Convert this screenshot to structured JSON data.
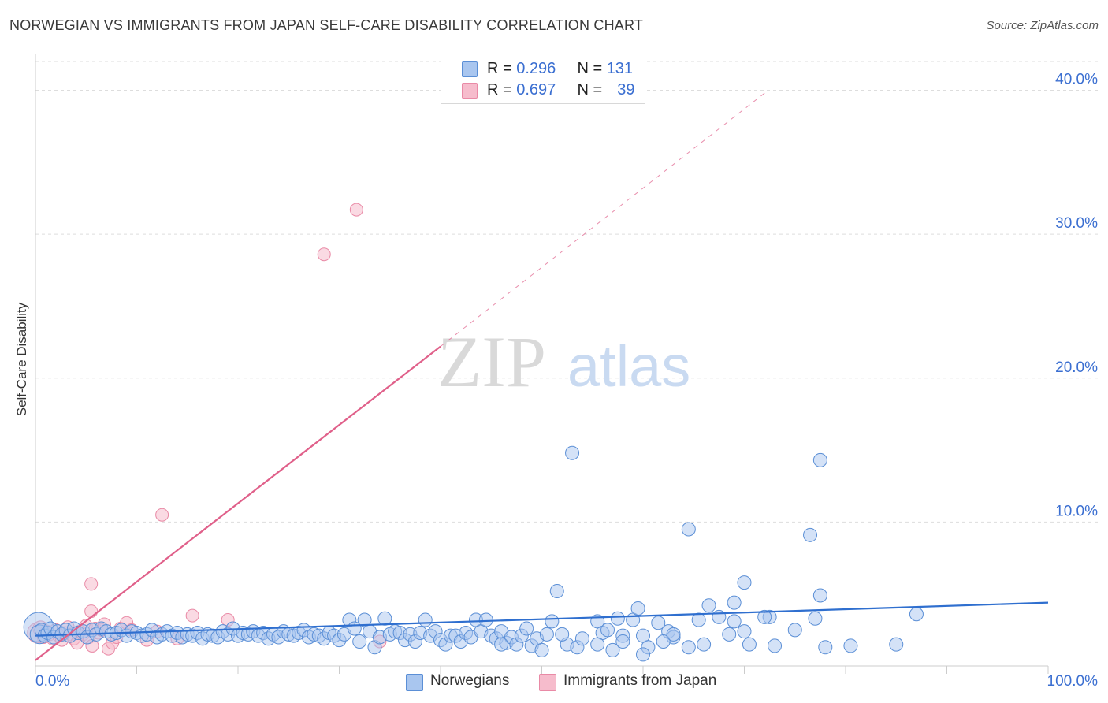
{
  "title": "NORWEGIAN VS IMMIGRANTS FROM JAPAN SELF-CARE DISABILITY CORRELATION CHART",
  "source": "Source: ZipAtlas.com",
  "watermark": {
    "zip": "ZIP",
    "atlas": "atlas"
  },
  "legend": {
    "rows": [
      {
        "r_label": "R =",
        "r_value": "0.296",
        "n_label": "N =",
        "n_value": "131"
      },
      {
        "r_label": "R =",
        "r_value": "0.697",
        "n_label": "N =",
        "n_value": "39"
      }
    ]
  },
  "bottom_legend": {
    "series1": "Norwegians",
    "series2": "Immigrants from Japan"
  },
  "colors": {
    "blue_fill": "#a9c6ef",
    "blue_stroke": "#5b8fd6",
    "blue_line": "#2f6fcf",
    "pink_fill": "#f6bccc",
    "pink_stroke": "#e98aa6",
    "pink_line": "#e0608a",
    "axis_text": "#3b6fd1",
    "grid": "#dddddd"
  },
  "chart_data": {
    "type": "scatter",
    "title": "NORWEGIAN VS IMMIGRANTS FROM JAPAN SELF-CARE DISABILITY CORRELATION CHART",
    "xlabel": "",
    "ylabel": "Self-Care Disability",
    "xlim": [
      0,
      100
    ],
    "ylim": [
      0,
      42
    ],
    "x_tick_labels": [
      "0.0%",
      "100.0%"
    ],
    "y_ticks": [
      10,
      20,
      30,
      40
    ],
    "y_tick_labels": [
      "10.0%",
      "20.0%",
      "30.0%",
      "40.0%"
    ],
    "grid": true,
    "series": [
      {
        "name": "Norwegians",
        "r": 0.296,
        "n": 131,
        "trend": {
          "x": [
            0,
            100
          ],
          "y": [
            2.1,
            4.4
          ],
          "dashed_beyond": null
        },
        "points": [
          [
            0.3,
            2.7,
            22
          ],
          [
            0.4,
            2.2,
            14
          ],
          [
            0.6,
            2.5,
            10
          ],
          [
            0.9,
            2.1,
            10
          ],
          [
            1.2,
            2.3,
            10
          ],
          [
            1.5,
            2.6,
            10
          ],
          [
            1.8,
            2.0,
            10
          ],
          [
            2.2,
            2.4,
            10
          ],
          [
            2.6,
            2.2,
            10
          ],
          [
            3.0,
            2.5,
            10
          ],
          [
            3.4,
            2.1,
            10
          ],
          [
            3.8,
            2.6,
            10
          ],
          [
            4.2,
            2.3,
            10
          ],
          [
            4.7,
            2.4,
            10
          ],
          [
            5.1,
            2.0,
            10
          ],
          [
            5.6,
            2.5,
            10
          ],
          [
            6.0,
            2.2,
            10
          ],
          [
            6.5,
            2.6,
            10
          ],
          [
            7.0,
            2.4,
            10
          ],
          [
            7.5,
            2.2,
            10
          ],
          [
            8.0,
            2.3,
            10
          ],
          [
            8.5,
            2.5,
            10
          ],
          [
            9.0,
            2.1,
            10
          ],
          [
            9.5,
            2.4,
            10
          ],
          [
            10.0,
            2.3,
            10
          ],
          [
            10.5,
            2.1,
            10
          ],
          [
            11.0,
            2.2,
            10
          ],
          [
            11.5,
            2.5,
            10
          ],
          [
            12.0,
            2.0,
            10
          ],
          [
            12.5,
            2.2,
            10
          ],
          [
            13.0,
            2.4,
            10
          ],
          [
            13.5,
            2.1,
            10
          ],
          [
            14.0,
            2.3,
            10
          ],
          [
            14.5,
            2.0,
            10
          ],
          [
            15.0,
            2.2,
            10
          ],
          [
            15.5,
            2.1,
            10
          ],
          [
            16.0,
            2.3,
            10
          ],
          [
            16.5,
            1.9,
            10
          ],
          [
            17.0,
            2.2,
            10
          ],
          [
            17.5,
            2.1,
            10
          ],
          [
            18.0,
            2.0,
            10
          ],
          [
            18.5,
            2.4,
            10
          ],
          [
            19.0,
            2.2,
            10
          ],
          [
            19.5,
            2.6,
            10
          ],
          [
            20.0,
            2.1,
            10
          ],
          [
            20.5,
            2.3,
            10
          ],
          [
            21.0,
            2.2,
            10
          ],
          [
            21.5,
            2.4,
            10
          ],
          [
            22.0,
            2.1,
            10
          ],
          [
            22.5,
            2.3,
            10
          ],
          [
            23.0,
            1.9,
            10
          ],
          [
            23.5,
            2.2,
            10
          ],
          [
            24.0,
            2.0,
            10
          ],
          [
            24.5,
            2.4,
            10
          ],
          [
            25.0,
            2.2,
            10
          ],
          [
            25.5,
            2.1,
            10
          ],
          [
            26.0,
            2.3,
            10
          ],
          [
            26.5,
            2.5,
            10
          ],
          [
            27.0,
            2.0,
            10
          ],
          [
            27.5,
            2.2,
            10
          ],
          [
            28.0,
            2.1,
            10
          ],
          [
            28.5,
            1.9,
            10
          ],
          [
            29.0,
            2.3,
            10
          ],
          [
            29.5,
            2.1,
            10
          ],
          [
            30.0,
            1.8,
            10
          ],
          [
            30.5,
            2.2,
            10
          ],
          [
            31.0,
            3.2,
            10
          ],
          [
            31.5,
            2.6,
            10
          ],
          [
            32.0,
            1.7,
            10
          ],
          [
            32.5,
            3.2,
            10
          ],
          [
            33.0,
            2.4,
            10
          ],
          [
            33.5,
            1.3,
            10
          ],
          [
            34.0,
            2.0,
            10
          ],
          [
            34.5,
            3.3,
            10
          ],
          [
            35.0,
            2.2,
            10
          ],
          [
            35.5,
            2.4,
            10
          ],
          [
            36.0,
            2.3,
            10
          ],
          [
            36.5,
            1.8,
            10
          ],
          [
            37.0,
            2.2,
            10
          ],
          [
            37.5,
            1.7,
            10
          ],
          [
            38.0,
            2.3,
            10
          ],
          [
            38.5,
            3.2,
            10
          ],
          [
            39.0,
            2.1,
            10
          ],
          [
            39.5,
            2.4,
            10
          ],
          [
            40.0,
            1.8,
            10
          ],
          [
            40.5,
            1.5,
            10
          ],
          [
            41.0,
            2.1,
            10
          ],
          [
            41.5,
            2.1,
            10
          ],
          [
            42.0,
            1.7,
            10
          ],
          [
            42.5,
            2.3,
            10
          ],
          [
            43.0,
            2.0,
            10
          ],
          [
            43.5,
            3.2,
            10
          ],
          [
            44.0,
            2.4,
            10
          ],
          [
            44.5,
            3.2,
            10
          ],
          [
            45.0,
            2.1,
            10
          ],
          [
            45.5,
            1.9,
            10
          ],
          [
            46.0,
            2.4,
            10
          ],
          [
            46.5,
            1.6,
            10
          ],
          [
            47.0,
            2.0,
            10
          ],
          [
            47.5,
            1.5,
            10
          ],
          [
            48.0,
            2.1,
            10
          ],
          [
            48.5,
            2.6,
            10
          ],
          [
            49.0,
            1.4,
            10
          ],
          [
            49.5,
            1.9,
            10
          ],
          [
            50.0,
            1.1,
            10
          ],
          [
            50.5,
            2.2,
            10
          ],
          [
            51.0,
            3.1,
            10
          ],
          [
            51.5,
            5.2,
            10
          ],
          [
            52.5,
            1.5,
            10
          ],
          [
            53.5,
            1.3,
            10
          ],
          [
            54.0,
            1.9,
            10
          ],
          [
            55.5,
            3.1,
            10
          ],
          [
            56.0,
            2.3,
            10
          ],
          [
            57.0,
            1.1,
            10
          ],
          [
            58.0,
            2.1,
            10
          ],
          [
            59.0,
            3.2,
            10
          ],
          [
            60.0,
            2.1,
            10
          ],
          [
            61.5,
            3.0,
            10
          ],
          [
            62.5,
            2.4,
            10
          ],
          [
            63.0,
            2.0,
            10
          ],
          [
            65.5,
            3.2,
            10
          ],
          [
            66.5,
            4.2,
            10
          ],
          [
            67.5,
            3.4,
            10
          ],
          [
            70.0,
            5.8,
            10
          ],
          [
            72.5,
            3.4,
            10
          ],
          [
            85.0,
            1.5,
            10
          ]
        ],
        "outliers": [
          [
            53.0,
            14.8
          ],
          [
            77.5,
            14.3
          ],
          [
            64.5,
            9.5
          ],
          [
            76.5,
            9.1
          ],
          [
            69.0,
            4.4
          ],
          [
            60.5,
            1.3
          ],
          [
            59.5,
            4.0
          ],
          [
            68.5,
            2.2
          ],
          [
            70.5,
            1.5
          ],
          [
            73.0,
            1.4
          ],
          [
            70.0,
            2.4
          ],
          [
            69.0,
            3.1
          ],
          [
            77.0,
            3.3
          ],
          [
            72.0,
            3.4
          ],
          [
            87.0,
            3.6
          ],
          [
            75.0,
            2.5
          ],
          [
            78.0,
            1.3
          ],
          [
            80.5,
            1.4
          ],
          [
            77.5,
            4.9
          ],
          [
            56.5,
            2.5
          ],
          [
            55.5,
            1.5
          ],
          [
            52.0,
            2.2
          ],
          [
            58.0,
            1.7
          ],
          [
            66.0,
            1.5
          ],
          [
            64.5,
            1.3
          ],
          [
            60.0,
            0.8
          ],
          [
            57.5,
            3.3
          ],
          [
            46.0,
            1.5
          ],
          [
            62.0,
            1.7
          ],
          [
            63.0,
            2.2
          ]
        ]
      },
      {
        "name": "Immigrants from Japan",
        "r": 0.697,
        "n": 39,
        "trend": {
          "x": [
            0,
            40
          ],
          "y": [
            0.4,
            22.2
          ],
          "dashed_to": [
            72,
            39.8
          ]
        },
        "points": [
          [
            0.2,
            2.3,
            16
          ],
          [
            0.5,
            2.6,
            12
          ],
          [
            0.8,
            2.0,
            10
          ],
          [
            1.1,
            2.4,
            10
          ],
          [
            1.4,
            2.2,
            10
          ],
          [
            1.7,
            1.9,
            10
          ],
          [
            2.0,
            2.5,
            10
          ],
          [
            2.3,
            2.1,
            10
          ],
          [
            2.6,
            1.8,
            10
          ],
          [
            2.9,
            2.3,
            10
          ],
          [
            3.2,
            2.7,
            10
          ],
          [
            3.5,
            2.2,
            10
          ],
          [
            3.8,
            1.9,
            10
          ],
          [
            4.1,
            1.6,
            10
          ],
          [
            4.4,
            2.4,
            10
          ],
          [
            4.7,
            2.2,
            10
          ],
          [
            5.0,
            2.8,
            10
          ],
          [
            5.3,
            2.0,
            10
          ],
          [
            5.6,
            1.4,
            10
          ],
          [
            5.9,
            2.6,
            10
          ],
          [
            6.2,
            2.3,
            10
          ],
          [
            6.5,
            2.5,
            10
          ],
          [
            6.8,
            2.9,
            10
          ],
          [
            7.2,
            1.2,
            10
          ],
          [
            7.6,
            1.6,
            10
          ],
          [
            8.0,
            2.0,
            10
          ],
          [
            8.4,
            2.6,
            10
          ],
          [
            9.0,
            3.0,
            10
          ],
          [
            9.5,
            2.5,
            10
          ],
          [
            11.0,
            1.8,
            10
          ],
          [
            12.0,
            2.4,
            10
          ],
          [
            14.0,
            1.9,
            10
          ],
          [
            15.5,
            3.5,
            10
          ],
          [
            19.0,
            3.2,
            10
          ],
          [
            34.0,
            1.7,
            10
          ],
          [
            5.5,
            5.7,
            10
          ],
          [
            5.5,
            3.8,
            10
          ],
          [
            12.5,
            10.5,
            10
          ],
          [
            28.5,
            28.6,
            10
          ],
          [
            31.7,
            31.7,
            10
          ]
        ]
      }
    ]
  }
}
